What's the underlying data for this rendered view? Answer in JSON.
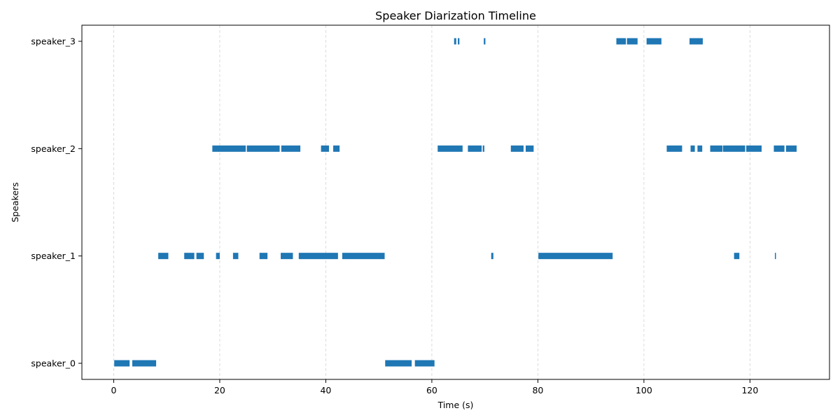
{
  "chart_data": {
    "type": "timeline",
    "title": "Speaker Diarization Timeline",
    "xlabel": "Time (s)",
    "ylabel": "Speakers",
    "xlim": [
      -6,
      135
    ],
    "x_ticks": [
      0,
      20,
      40,
      60,
      80,
      100,
      120
    ],
    "x_tick_labels": [
      "0",
      "20",
      "40",
      "60",
      "80",
      "100",
      "120"
    ],
    "categories": [
      "speaker_0",
      "speaker_1",
      "speaker_2",
      "speaker_3"
    ],
    "grid": "vertical-dashed",
    "bar_color": "#1f77b4",
    "series": [
      {
        "category": "speaker_0",
        "segments": [
          [
            0.1,
            3.0
          ],
          [
            3.5,
            8.0
          ],
          [
            51.2,
            56.2
          ],
          [
            56.8,
            60.5
          ]
        ]
      },
      {
        "category": "speaker_1",
        "segments": [
          [
            8.4,
            10.3
          ],
          [
            13.3,
            15.2
          ],
          [
            15.6,
            17.0
          ],
          [
            19.3,
            20.0
          ],
          [
            22.5,
            23.5
          ],
          [
            27.5,
            29.0
          ],
          [
            31.5,
            33.8
          ],
          [
            34.9,
            42.3
          ],
          [
            43.1,
            51.1
          ],
          [
            71.2,
            71.6
          ],
          [
            80.1,
            94.1
          ],
          [
            117.0,
            118.0
          ],
          [
            124.7,
            124.9
          ]
        ]
      },
      {
        "category": "speaker_2",
        "segments": [
          [
            18.6,
            24.9
          ],
          [
            25.1,
            31.3
          ],
          [
            31.6,
            35.2
          ],
          [
            39.1,
            40.6
          ],
          [
            41.4,
            42.6
          ],
          [
            61.1,
            65.8
          ],
          [
            66.8,
            69.4
          ],
          [
            69.6,
            69.9
          ],
          [
            74.9,
            77.3
          ],
          [
            77.7,
            79.2
          ],
          [
            104.3,
            107.2
          ],
          [
            108.8,
            109.6
          ],
          [
            110.1,
            111.0
          ],
          [
            112.5,
            114.8
          ],
          [
            114.9,
            119.1
          ],
          [
            119.3,
            122.2
          ],
          [
            124.5,
            126.5
          ],
          [
            126.8,
            128.8
          ]
        ]
      },
      {
        "category": "speaker_3",
        "segments": [
          [
            64.2,
            64.6
          ],
          [
            64.9,
            65.2
          ],
          [
            69.8,
            70.1
          ],
          [
            94.8,
            96.6
          ],
          [
            96.8,
            98.8
          ],
          [
            100.5,
            103.3
          ],
          [
            108.6,
            111.1
          ]
        ]
      }
    ]
  }
}
